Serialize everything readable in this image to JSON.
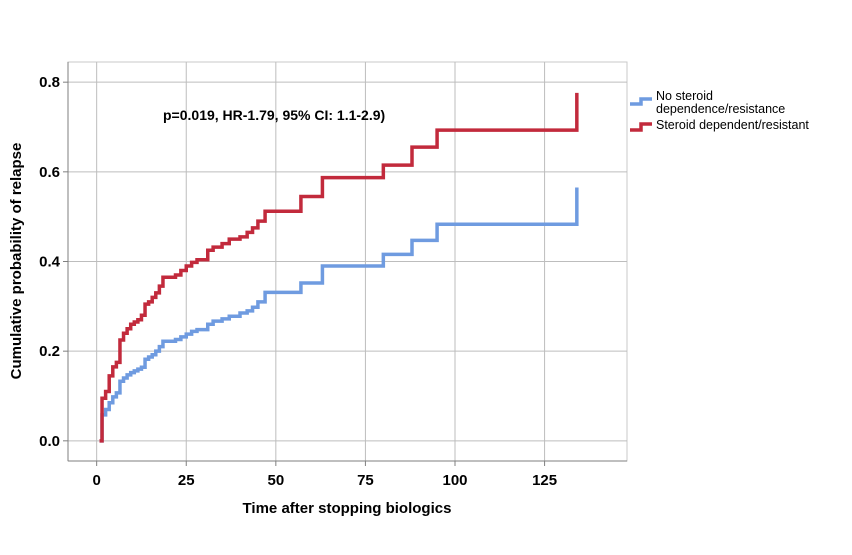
{
  "chart_data": {
    "type": "line",
    "step": true,
    "annotation": "p=0.019, HR-1.79, 95% CI: 1.1-2.9)",
    "xlabel": "Time after stopping biologics",
    "ylabel": "Cumulative probability of relapse",
    "xlim": [
      -8,
      148
    ],
    "ylim": [
      -0.045,
      0.845
    ],
    "xticks": [
      0,
      25,
      50,
      75,
      100,
      125
    ],
    "yticks": [
      0.0,
      0.2,
      0.4,
      0.6,
      0.8
    ],
    "ytick_labels": [
      "0.0",
      "0.2",
      "0.4",
      "0.6",
      "0.8"
    ],
    "grid": true,
    "legend_position": "top-right",
    "series": [
      {
        "name_lines": [
          "No steroid",
          "dependence/resistance"
        ],
        "color": "#6f9be0",
        "x": [
          0.8,
          1.5,
          2.5,
          3.5,
          4.5,
          5.5,
          6.5,
          7.5,
          8.5,
          9.5,
          10.5,
          11.5,
          12.5,
          13.5,
          14.5,
          15.5,
          16.5,
          17.5,
          18.5,
          22,
          23.5,
          25,
          26.5,
          28,
          31,
          32.5,
          35,
          37,
          40,
          42,
          43.5,
          45,
          47,
          57,
          63,
          80,
          88,
          95,
          134,
          134
        ],
        "y": [
          0.0,
          0.058,
          0.07,
          0.085,
          0.098,
          0.107,
          0.133,
          0.14,
          0.147,
          0.152,
          0.156,
          0.16,
          0.164,
          0.182,
          0.187,
          0.192,
          0.2,
          0.21,
          0.222,
          0.226,
          0.232,
          0.238,
          0.244,
          0.248,
          0.26,
          0.267,
          0.272,
          0.278,
          0.285,
          0.29,
          0.298,
          0.31,
          0.331,
          0.352,
          0.39,
          0.416,
          0.447,
          0.483,
          0.483,
          0.565
        ]
      },
      {
        "name": "Steroid dependent/resistant",
        "color": "#c22a3c",
        "x": [
          0.8,
          1.5,
          2.5,
          3.5,
          4.5,
          5.5,
          6.5,
          7.5,
          8.5,
          9.5,
          10.5,
          11.5,
          12.5,
          13.5,
          14.5,
          15.5,
          16.5,
          17.5,
          18.5,
          22,
          23.5,
          25,
          26.5,
          28,
          31,
          32.5,
          35,
          37,
          40,
          42,
          43.5,
          45,
          47,
          57,
          63,
          80,
          88,
          95,
          134,
          134
        ],
        "y": [
          0.0,
          0.095,
          0.11,
          0.145,
          0.165,
          0.175,
          0.225,
          0.24,
          0.25,
          0.26,
          0.265,
          0.27,
          0.28,
          0.305,
          0.31,
          0.32,
          0.33,
          0.345,
          0.365,
          0.37,
          0.38,
          0.39,
          0.398,
          0.404,
          0.425,
          0.432,
          0.44,
          0.45,
          0.455,
          0.465,
          0.475,
          0.49,
          0.512,
          0.545,
          0.587,
          0.615,
          0.655,
          0.693,
          0.693,
          0.776
        ]
      }
    ]
  }
}
